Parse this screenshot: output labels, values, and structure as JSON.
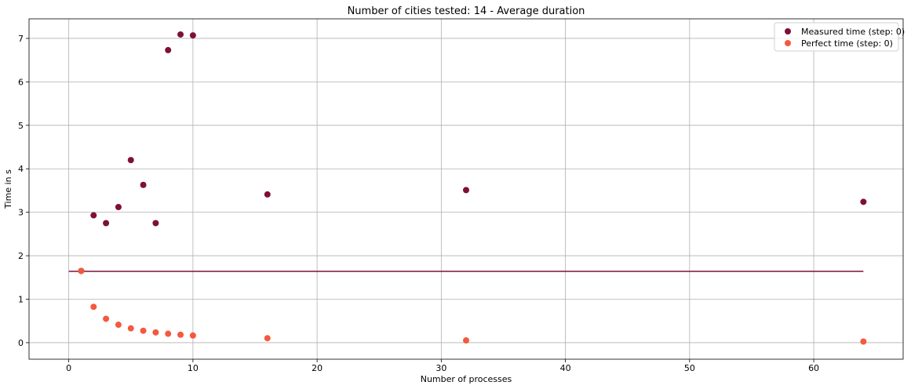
{
  "chart_data": {
    "type": "scatter",
    "title": "Number of cities tested: 14 - Average duration",
    "xlabel": "Number of processes",
    "ylabel": "Time in s",
    "xlim": [
      -3.2,
      67.2
    ],
    "ylim": [
      -0.38,
      7.45
    ],
    "xticks": [
      0,
      10,
      20,
      30,
      40,
      50,
      60
    ],
    "yticks": [
      0,
      1,
      2,
      3,
      4,
      5,
      6,
      7
    ],
    "grid": true,
    "legend_position": "top-right",
    "series": [
      {
        "name": "Measured time (step: 0)",
        "color": "#7e1038",
        "points": [
          {
            "x": 1,
            "y": 1.65
          },
          {
            "x": 2,
            "y": 2.93
          },
          {
            "x": 3,
            "y": 2.75
          },
          {
            "x": 4,
            "y": 3.12
          },
          {
            "x": 5,
            "y": 4.2
          },
          {
            "x": 6,
            "y": 3.63
          },
          {
            "x": 7,
            "y": 2.75
          },
          {
            "x": 8,
            "y": 6.73
          },
          {
            "x": 9,
            "y": 7.09
          },
          {
            "x": 10,
            "y": 7.07
          },
          {
            "x": 16,
            "y": 3.41
          },
          {
            "x": 32,
            "y": 3.51
          },
          {
            "x": 64,
            "y": 3.24
          }
        ]
      },
      {
        "name": "Perfect time (step: 0)",
        "color": "#f4593f",
        "points": [
          {
            "x": 1,
            "y": 1.65
          },
          {
            "x": 2,
            "y": 0.825
          },
          {
            "x": 3,
            "y": 0.55
          },
          {
            "x": 4,
            "y": 0.413
          },
          {
            "x": 5,
            "y": 0.33
          },
          {
            "x": 6,
            "y": 0.275
          },
          {
            "x": 7,
            "y": 0.236
          },
          {
            "x": 8,
            "y": 0.206
          },
          {
            "x": 9,
            "y": 0.183
          },
          {
            "x": 10,
            "y": 0.165
          },
          {
            "x": 16,
            "y": 0.103
          },
          {
            "x": 32,
            "y": 0.052
          },
          {
            "x": 64,
            "y": 0.026
          }
        ]
      }
    ],
    "reference_line": {
      "x_start": 0,
      "x_end": 64,
      "y": 1.64,
      "color": "#7e1038"
    }
  }
}
